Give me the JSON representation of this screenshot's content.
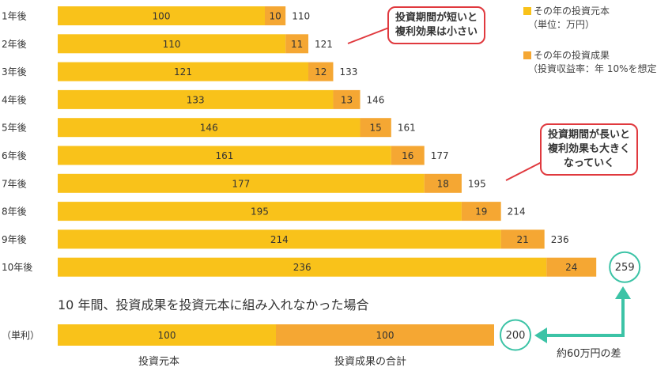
{
  "chart_data": {
    "type": "bar",
    "stacked": true,
    "orientation": "horizontal",
    "categories": [
      "1年後",
      "2年後",
      "3年後",
      "4年後",
      "5年後",
      "6年後",
      "7年後",
      "8年後",
      "9年後",
      "10年後"
    ],
    "series": [
      {
        "name": "その年の投資元本",
        "values": [
          100,
          110,
          121,
          133,
          146,
          161,
          177,
          195,
          214,
          236
        ],
        "color": "#f9c21a"
      },
      {
        "name": "その年の投資成果",
        "values": [
          10,
          11,
          12,
          13,
          15,
          16,
          18,
          19,
          21,
          24
        ],
        "color": "#f5a733"
      }
    ],
    "totals": [
      110,
      121,
      133,
      146,
      161,
      177,
      195,
      214,
      236,
      259
    ],
    "legend": {
      "placement": "top-right",
      "items": [
        {
          "label": "その年の投資元本",
          "note": "（単位：万円）",
          "color": "#f9c21a"
        },
        {
          "label": "その年の投資成果",
          "note": "（投資収益率：年 10%を想定",
          "color": "#f5a733"
        }
      ]
    },
    "callouts": [
      {
        "lines": [
          "投資期間が短いと",
          "複利効果は小さい"
        ]
      },
      {
        "lines": [
          "投資期間が長いと",
          "複利効果も大きく",
          "なっていく"
        ]
      }
    ],
    "simple_interest": {
      "title": "10 年間、投資成果を投資元本に組み入れなかった場合",
      "row_label": "（単利）",
      "values": [
        100,
        100
      ],
      "segment_labels": [
        "投資元本",
        "投資成果の合計"
      ],
      "total": 200,
      "difference_label": "約60万円の差"
    }
  }
}
